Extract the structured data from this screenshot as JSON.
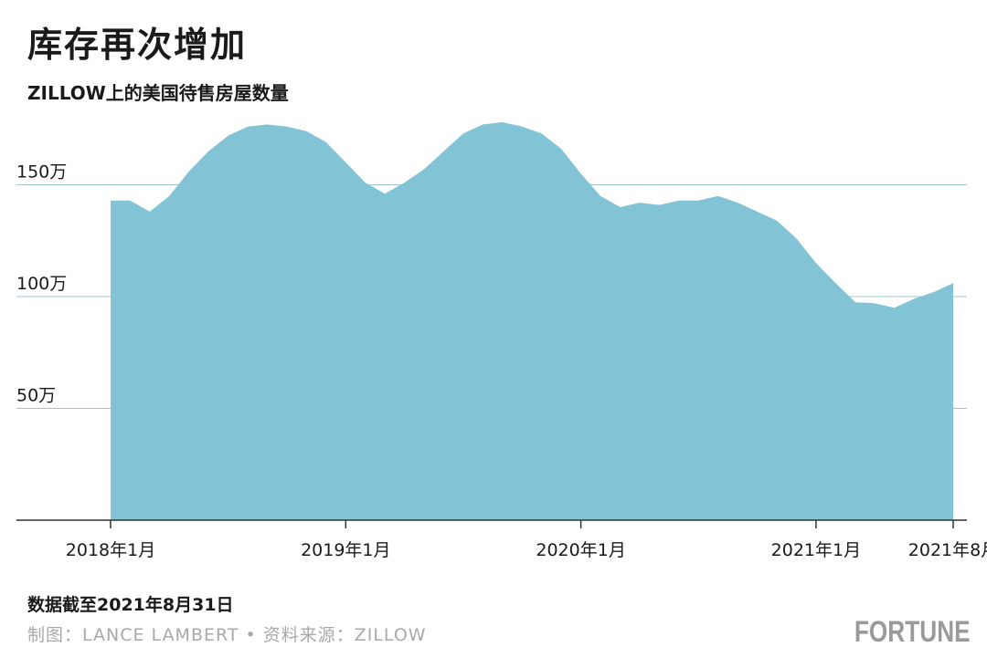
{
  "header": {
    "title": "库存再次增加",
    "subtitle": "ZILLOW上的美国待售房屋数量"
  },
  "footer": {
    "note": "数据截至2021年8月31日",
    "credit": "制图：LANCE LAMBERT • 资料来源：ZILLOW",
    "logo": "FORTUNE"
  },
  "colors": {
    "area_fill": "#82c3d6",
    "gridline": "#9fc4cf",
    "axis": "#333333",
    "text": "#1a1a1a"
  },
  "chart_data": {
    "type": "area",
    "title": "库存再次增加",
    "subtitle": "ZILLOW上的美国待售房屋数量",
    "xlabel": "",
    "ylabel": "",
    "ylim": [
      0,
      1800000
    ],
    "grid": true,
    "legend": "none",
    "y_ticks": [
      {
        "value": 500000,
        "label": "50万"
      },
      {
        "value": 1000000,
        "label": "100万"
      },
      {
        "value": 1500000,
        "label": "150万"
      }
    ],
    "x_ticks": [
      {
        "index": 0,
        "label": "2018年1月"
      },
      {
        "index": 12,
        "label": "2019年1月"
      },
      {
        "index": 24,
        "label": "2020年1月"
      },
      {
        "index": 36,
        "label": "2021年1月"
      },
      {
        "index": 43,
        "label": "2021年8月"
      }
    ],
    "series": [
      {
        "x": [
          "2018-01",
          "2018-02",
          "2018-03",
          "2018-04",
          "2018-05",
          "2018-06",
          "2018-07",
          "2018-08",
          "2018-09",
          "2018-10",
          "2018-11",
          "2018-12",
          "2019-01",
          "2019-02",
          "2019-03",
          "2019-04",
          "2019-05",
          "2019-06",
          "2019-07",
          "2019-08",
          "2019-09",
          "2019-10",
          "2019-11",
          "2019-12",
          "2020-01",
          "2020-02",
          "2020-03",
          "2020-04",
          "2020-05",
          "2020-06",
          "2020-07",
          "2020-08",
          "2020-09",
          "2020-10",
          "2020-11",
          "2020-12",
          "2021-01",
          "2021-02",
          "2021-03",
          "2021-04",
          "2021-05",
          "2021-06",
          "2021-07",
          "2021-08"
        ],
        "values": [
          1430000,
          1430000,
          1380000,
          1450000,
          1560000,
          1650000,
          1720000,
          1760000,
          1770000,
          1760000,
          1740000,
          1690000,
          1600000,
          1510000,
          1460000,
          1510000,
          1570000,
          1650000,
          1730000,
          1770000,
          1780000,
          1760000,
          1730000,
          1660000,
          1550000,
          1450000,
          1400000,
          1420000,
          1410000,
          1430000,
          1430000,
          1450000,
          1420000,
          1380000,
          1340000,
          1260000,
          1150000,
          1060000,
          975000,
          970000,
          950000,
          990000,
          1020000,
          1060000
        ]
      }
    ]
  }
}
